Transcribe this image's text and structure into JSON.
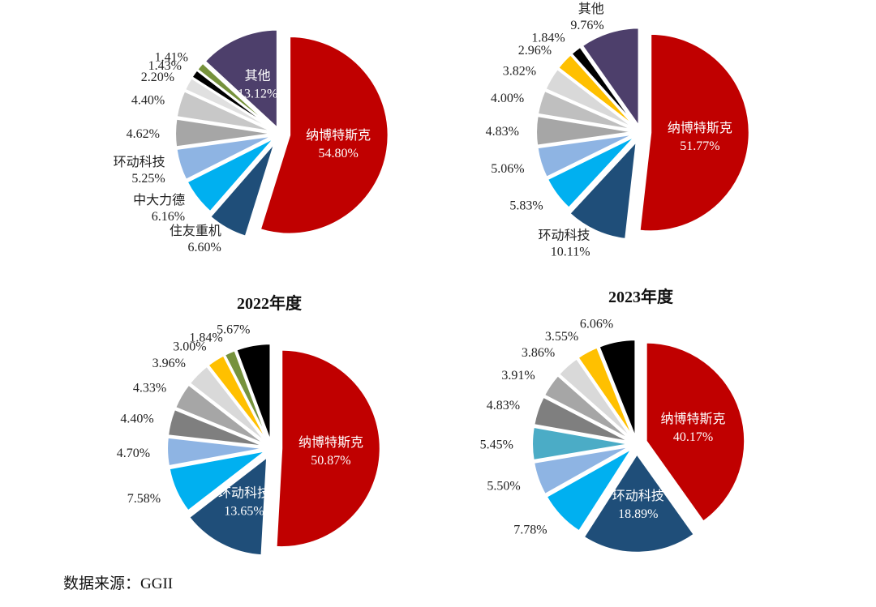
{
  "source": "数据来源：GGII",
  "chart_data": [
    {
      "type": "pie",
      "title": "",
      "slices": [
        {
          "label": "纳博特斯克",
          "value": 54.8,
          "value_text": "54.80%",
          "color": "#C00000"
        },
        {
          "label": "住友重机",
          "value": 6.6,
          "value_text": "6.60%",
          "color": "#1F4E79"
        },
        {
          "label": "中大力德",
          "value": 6.16,
          "value_text": "6.16%",
          "color": "#00B0F0"
        },
        {
          "label": "环动科技",
          "value": 5.25,
          "value_text": "5.25%",
          "color": "#8EB4E3"
        },
        {
          "label": "",
          "value": 4.62,
          "value_text": "4.62%",
          "color": "#A6A6A6"
        },
        {
          "label": "",
          "value": 4.4,
          "value_text": "4.40%",
          "color": "#C8C8C8"
        },
        {
          "label": "",
          "value": 2.2,
          "value_text": "2.20%",
          "color": "#E0E0E0"
        },
        {
          "label": "",
          "value": 1.43,
          "value_text": "1.43%",
          "color": "#000000"
        },
        {
          "label": "",
          "value": 1.41,
          "value_text": "1.41%",
          "color": "#76923C"
        },
        {
          "label": "其他",
          "value": 13.12,
          "value_text": "13.12%",
          "color": "#4D3F6B"
        }
      ]
    },
    {
      "type": "pie",
      "title": "",
      "slices": [
        {
          "label": "纳博特斯克",
          "value": 51.77,
          "value_text": "51.77%",
          "color": "#C00000"
        },
        {
          "label": "环动科技",
          "value": 10.11,
          "value_text": "10.11%",
          "color": "#1F4E79"
        },
        {
          "label": "",
          "value": 5.83,
          "value_text": "5.83%",
          "color": "#00B0F0"
        },
        {
          "label": "",
          "value": 5.06,
          "value_text": "5.06%",
          "color": "#8EB4E3"
        },
        {
          "label": "",
          "value": 4.83,
          "value_text": "4.83%",
          "color": "#A6A6A6"
        },
        {
          "label": "",
          "value": 4.0,
          "value_text": "4.00%",
          "color": "#BFBFBF"
        },
        {
          "label": "",
          "value": 3.82,
          "value_text": "3.82%",
          "color": "#D9D9D9"
        },
        {
          "label": "",
          "value": 2.96,
          "value_text": "2.96%",
          "color": "#FFC000"
        },
        {
          "label": "",
          "value": 1.84,
          "value_text": "1.84%",
          "color": "#000000"
        },
        {
          "label": "其他",
          "value": 9.76,
          "value_text": "9.76%",
          "color": "#4D3F6B"
        }
      ]
    },
    {
      "type": "pie",
      "title": "2022年度",
      "slices": [
        {
          "label": "纳博特斯克",
          "value": 50.87,
          "value_text": "50.87%",
          "color": "#C00000"
        },
        {
          "label": "环动科技",
          "value": 13.65,
          "value_text": "13.65%",
          "color": "#1F4E79"
        },
        {
          "label": "",
          "value": 7.58,
          "value_text": "7.58%",
          "color": "#00B0F0"
        },
        {
          "label": "",
          "value": 4.7,
          "value_text": "4.70%",
          "color": "#8EB4E3"
        },
        {
          "label": "",
          "value": 4.4,
          "value_text": "4.40%",
          "color": "#7F7F7F"
        },
        {
          "label": "",
          "value": 4.33,
          "value_text": "4.33%",
          "color": "#A6A6A6"
        },
        {
          "label": "",
          "value": 3.96,
          "value_text": "3.96%",
          "color": "#D9D9D9"
        },
        {
          "label": "",
          "value": 3.0,
          "value_text": "3.00%",
          "color": "#FFC000"
        },
        {
          "label": "",
          "value": 1.84,
          "value_text": "1.84%",
          "color": "#76923C"
        },
        {
          "label": "",
          "value": 5.67,
          "value_text": "5.67%",
          "color": "#000000"
        }
      ]
    },
    {
      "type": "pie",
      "title": "2023年度",
      "slices": [
        {
          "label": "纳博特斯克",
          "value": 40.17,
          "value_text": "40.17%",
          "color": "#C00000"
        },
        {
          "label": "环动科技",
          "value": 18.89,
          "value_text": "18.89%",
          "color": "#1F4E79"
        },
        {
          "label": "",
          "value": 7.78,
          "value_text": "7.78%",
          "color": "#00B0F0"
        },
        {
          "label": "",
          "value": 5.5,
          "value_text": "5.50%",
          "color": "#8EB4E3"
        },
        {
          "label": "",
          "value": 5.45,
          "value_text": "5.45%",
          "color": "#4BACC6"
        },
        {
          "label": "",
          "value": 4.83,
          "value_text": "4.83%",
          "color": "#7F7F7F"
        },
        {
          "label": "",
          "value": 3.91,
          "value_text": "3.91%",
          "color": "#A6A6A6"
        },
        {
          "label": "",
          "value": 3.86,
          "value_text": "3.86%",
          "color": "#D9D9D9"
        },
        {
          "label": "",
          "value": 3.55,
          "value_text": "3.55%",
          "color": "#FFC000"
        },
        {
          "label": "",
          "value": 6.06,
          "value_text": "6.06%",
          "color": "#000000"
        }
      ]
    }
  ]
}
